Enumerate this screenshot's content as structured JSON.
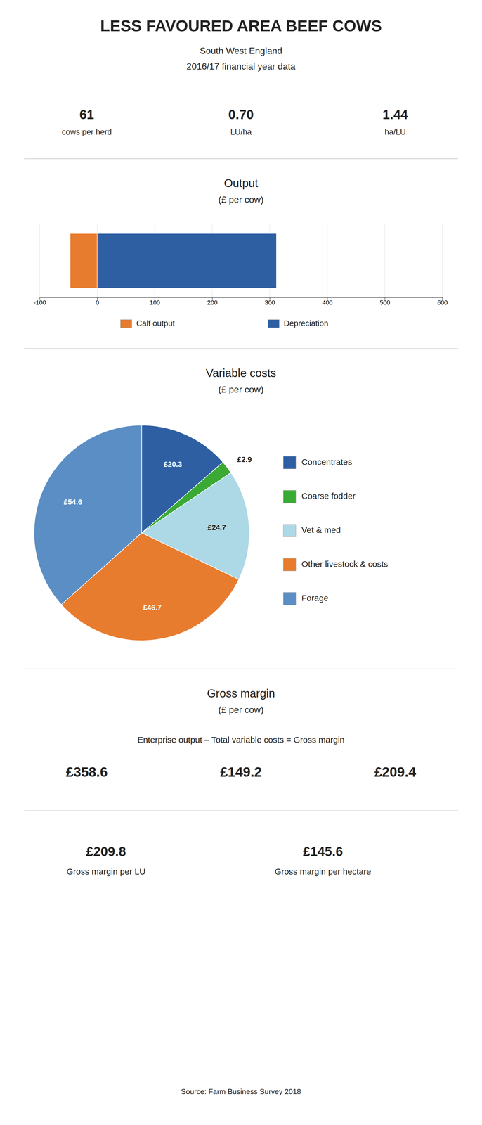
{
  "title": "LESS FAVOURED AREA BEEF COWS",
  "subtitle": [
    "South West England",
    "2016/17 financial year data"
  ],
  "annotations": [
    "61",
    "cows per herd",
    "0.70",
    "LU/ha",
    "1.44",
    "ha/LU",
    "Gross margin",
    "(£ per cow)",
    "Enterprise output – Total variable costs = Gross margin",
    "£358.6",
    "£149.2",
    "£209.4",
    "£209.8",
    "Gross margin per LU",
    "£145.6",
    "Gross margin per hectare",
    "Source: Farm Business Survey 2018"
  ],
  "chart_data": [
    {
      "type": "bar",
      "title": "Output",
      "subtitle": "(£ per cow)",
      "orientation": "horizontal",
      "stacked": true,
      "categories": [
        null
      ],
      "series": [
        {
          "name": "Calf output",
          "color": "#e87c2e",
          "values": [
            -47.0
          ]
        },
        {
          "name": "Depreciation",
          "color": "#2e5fa3",
          "values": [
            311.6
          ]
        }
      ],
      "xlim": [
        -100,
        600
      ],
      "xticks": [
        -100,
        0,
        100,
        200,
        300,
        400,
        500,
        600
      ],
      "grid": true,
      "legend": "bottom",
      "tick_labels": "x"
    },
    {
      "type": "pie",
      "title": "Variable costs",
      "subtitle": "(£ per cow)",
      "categories": [
        "Concentrates",
        "Coarse fodder",
        "Vet & med",
        "Other livestock & costs",
        "Forage"
      ],
      "values": [
        20.3,
        2.9,
        24.7,
        46.7,
        54.6
      ],
      "value_labels": [
        "£20.3",
        "£2.9",
        "£24.7",
        "£46.7",
        "£54.6"
      ],
      "colors": [
        "#2e5fa3",
        "#3aaa35",
        "#add8e6",
        "#e87c2e",
        "#5b8ec4"
      ],
      "data_labels": true,
      "legend": "right"
    }
  ]
}
